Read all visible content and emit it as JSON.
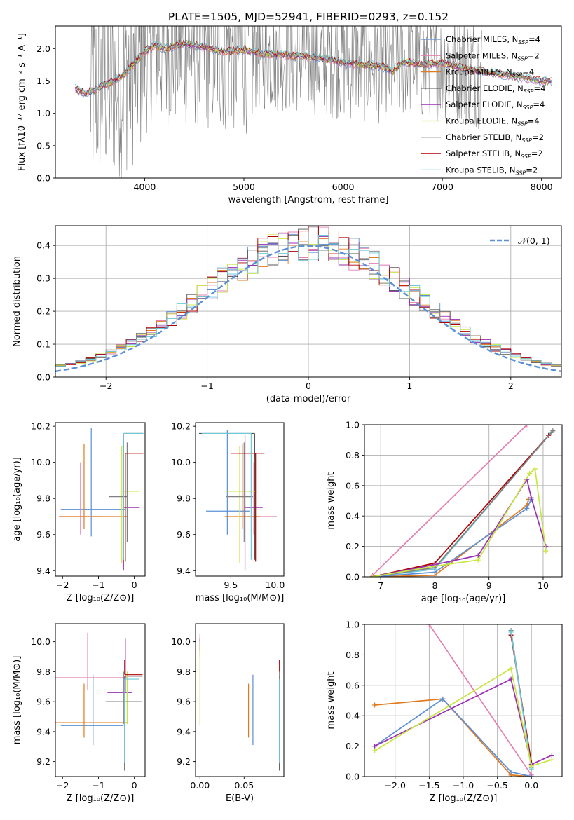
{
  "figure_title": "PLATE=1505, MJD=52941, FIBERID=0293, z=0.152",
  "colors": {
    "chabrier_miles": "#5b8fd6",
    "salpeter_miles": "#e57fb0",
    "kroupa_miles": "#e07a1f",
    "chabrier_elodie": "#555555",
    "salpeter_elodie": "#9a2fb3",
    "kroupa_elodie": "#c8e640",
    "chabrier_stelib": "#808080",
    "salpeter_stelib": "#b00000",
    "kroupa_stelib": "#6ccad8",
    "gauss": "#5b8fd6",
    "grid": "#b0b0b0"
  },
  "chart_data": [
    {
      "id": "spectrum",
      "type": "line",
      "ylabel": "Flux [fλ10⁻¹⁷ erg cm⁻² s⁻¹ A⁻¹]",
      "xlabel": "wavelength [Angstrom, rest frame]",
      "xlim": [
        3100,
        8200
      ],
      "ylim": [
        0,
        2.35
      ],
      "xticks": [
        4000,
        5000,
        6000,
        7000,
        8000
      ],
      "yticks": [
        0.0,
        0.5,
        1.0,
        1.5,
        2.0
      ],
      "grid": false,
      "legend_position": "top-right",
      "legend": [
        {
          "label": "Chabrier MILES, N_SSP=4",
          "color": "#5b8fd6"
        },
        {
          "label": "Salpeter MILES, N_SSP=2",
          "color": "#e57fb0"
        },
        {
          "label": "Kroupa MILES, N_SSP=4",
          "color": "#e07a1f"
        },
        {
          "label": "Chabrier ELODIE, N_SSP=4",
          "color": "#555555"
        },
        {
          "label": "Salpeter ELODIE, N_SSP=4",
          "color": "#9a2fb3"
        },
        {
          "label": "Kroupa ELODIE, N_SSP=4",
          "color": "#c8e640"
        },
        {
          "label": "Chabrier STELIB, N_SSP=2",
          "color": "#808080"
        },
        {
          "label": "Salpeter STELIB, N_SSP=2",
          "color": "#b00000"
        },
        {
          "label": "Kroupa STELIB, N_SSP=2",
          "color": "#6ccad8"
        }
      ],
      "model_continuum": {
        "x": [
          3300,
          3400,
          3500,
          3600,
          3700,
          3800,
          3900,
          4000,
          4100,
          4200,
          4400,
          4600,
          4800,
          5000,
          5200,
          5400,
          5600,
          5800,
          6000,
          6200,
          6400,
          6500,
          6600,
          6800,
          7000,
          7200,
          7400,
          7600,
          7800,
          8000,
          8100
        ],
        "y": [
          1.38,
          1.3,
          1.36,
          1.45,
          1.5,
          1.62,
          1.78,
          1.95,
          2.05,
          2.0,
          2.08,
          2.02,
          1.95,
          1.98,
          1.92,
          1.9,
          1.88,
          1.85,
          1.78,
          1.75,
          1.72,
          1.65,
          1.8,
          1.75,
          1.78,
          1.7,
          1.65,
          1.6,
          1.55,
          1.5,
          1.5
        ]
      },
      "data_spectrum_note_range": [
        3450,
        7400
      ]
    },
    {
      "id": "residuals",
      "type": "line",
      "ylabel": "Normed distribution",
      "xlabel": "(data-model)/error",
      "xlim": [
        -2.5,
        2.5
      ],
      "ylim": [
        0,
        0.46
      ],
      "xticks": [
        -2,
        -1,
        0,
        1,
        2
      ],
      "yticks": [
        0.0,
        0.1,
        0.2,
        0.3,
        0.4
      ],
      "grid": true,
      "legend_position": "top-right",
      "legend": [
        {
          "label": "𝒩(0, 1)",
          "color": "#5b8fd6",
          "style": "dashed"
        }
      ],
      "gaussian": {
        "mu": 0,
        "sigma": 1
      },
      "hist_bin_width": 0.1
    },
    {
      "id": "age_vs_Z",
      "type": "scatter",
      "xlabel": "Z [log₁₀(Z/Z⊙)]",
      "ylabel": "age  [log₁₀(age/yr)]",
      "xlim": [
        -2.2,
        0.3
      ],
      "ylim": [
        9.37,
        10.22
      ],
      "xticks": [
        -2,
        -1,
        0
      ],
      "yticks": [
        9.4,
        9.6,
        9.8,
        10.0,
        10.2
      ],
      "grid": false,
      "points": [
        {
          "x": -1.2,
          "y": 9.74,
          "xerr": [
            0.85,
            0.95
          ],
          "yerr": [
            0.15,
            0.45
          ],
          "color": "#5b8fd6"
        },
        {
          "x": -1.5,
          "y": 9.7,
          "xerr": [
            0.6,
            0.6
          ],
          "yerr": [
            0.1,
            0.3
          ],
          "color": "#e57fb0"
        },
        {
          "x": -1.4,
          "y": 9.7,
          "xerr": [
            0.7,
            1.2
          ],
          "yerr": [
            0.07,
            0.4
          ],
          "color": "#e07a1f"
        },
        {
          "x": -0.3,
          "y": 10.16,
          "xerr": [
            0.0,
            0.55
          ],
          "yerr": [
            0.7,
            0.0
          ],
          "color": "#555555"
        },
        {
          "x": -0.3,
          "y": 9.75,
          "xerr": [
            0.0,
            0.45
          ],
          "yerr": [
            0.35,
            0.4
          ],
          "color": "#9a2fb3"
        },
        {
          "x": -0.35,
          "y": 9.84,
          "xerr": [
            0.0,
            0.5
          ],
          "yerr": [
            0.4,
            0.25
          ],
          "color": "#c8e640"
        },
        {
          "x": -0.2,
          "y": 9.81,
          "xerr": [
            0.5,
            0.0
          ],
          "yerr": [
            0.25,
            0.3
          ],
          "color": "#808080"
        },
        {
          "x": -0.25,
          "y": 10.05,
          "xerr": [
            0.0,
            0.5
          ],
          "yerr": [
            0.6,
            0.0
          ],
          "color": "#b00000"
        },
        {
          "x": -0.3,
          "y": 10.16,
          "xerr": [
            0.0,
            0.55
          ],
          "yerr": [
            0.7,
            0.0
          ],
          "color": "#6ccad8"
        }
      ]
    },
    {
      "id": "age_vs_mass",
      "type": "scatter",
      "xlabel": "mass [log₁₀(M/M⊙)]",
      "xlim": [
        9.1,
        10.1
      ],
      "ylim": [
        9.37,
        10.22
      ],
      "xticks": [
        9.5,
        10.0
      ],
      "yticks": [
        9.4,
        9.6,
        9.8,
        10.0,
        10.2
      ],
      "grid": false,
      "points": [
        {
          "x": 9.46,
          "y": 9.73,
          "xerr": [
            0.24,
            0.25
          ],
          "yerr": [
            0.13,
            0.45
          ],
          "color": "#5b8fd6"
        },
        {
          "x": 9.76,
          "y": 9.7,
          "xerr": [
            0.08,
            0.26
          ],
          "yerr": [
            0.1,
            0.3
          ],
          "color": "#e57fb0"
        },
        {
          "x": 9.63,
          "y": 9.7,
          "xerr": [
            0.2,
            0.2
          ],
          "yerr": [
            0.07,
            0.4
          ],
          "color": "#e07a1f"
        },
        {
          "x": 9.77,
          "y": 10.16,
          "xerr": [
            0.63,
            0.0
          ],
          "yerr": [
            0.7,
            0.0
          ],
          "color": "#555555"
        },
        {
          "x": 9.66,
          "y": 9.75,
          "xerr": [
            0.0,
            0.2
          ],
          "yerr": [
            0.35,
            0.4
          ],
          "color": "#9a2fb3"
        },
        {
          "x": 9.6,
          "y": 9.84,
          "xerr": [
            0.15,
            0.2
          ],
          "yerr": [
            0.4,
            0.25
          ],
          "color": "#c8e640"
        },
        {
          "x": 9.65,
          "y": 9.81,
          "xerr": [
            0.2,
            0.1
          ],
          "yerr": [
            0.25,
            0.3
          ],
          "color": "#808080"
        },
        {
          "x": 9.78,
          "y": 10.05,
          "xerr": [
            0.28,
            0.1
          ],
          "yerr": [
            0.6,
            0.0
          ],
          "color": "#b00000"
        },
        {
          "x": 9.73,
          "y": 10.16,
          "xerr": [
            0.56,
            0.0
          ],
          "yerr": [
            0.7,
            0.0
          ],
          "color": "#6ccad8"
        }
      ]
    },
    {
      "id": "mass_weight_vs_age",
      "type": "line",
      "xlabel": "age  [log₁₀(age/yr)]",
      "ylabel": "mass weight",
      "xlim": [
        6.7,
        10.35
      ],
      "ylim": [
        0,
        1.0
      ],
      "xticks": [
        7,
        8,
        9,
        10
      ],
      "yticks": [
        0.0,
        0.2,
        0.4,
        0.6,
        0.8,
        1.0
      ],
      "grid": true,
      "series": [
        {
          "color": "#e57fb0",
          "x": [
            6.85,
            9.7
          ],
          "y": [
            0.01,
            1.0
          ]
        },
        {
          "color": "#b00000",
          "x": [
            6.85,
            8.0,
            10.1
          ],
          "y": [
            0.0,
            0.09,
            0.93
          ]
        },
        {
          "color": "#6ccad8",
          "x": [
            6.85,
            8.0,
            10.15
          ],
          "y": [
            0.0,
            0.05,
            0.95
          ]
        },
        {
          "color": "#808080",
          "x": [
            6.85,
            8.0,
            10.18
          ],
          "y": [
            0.0,
            0.06,
            0.96
          ]
        },
        {
          "color": "#e07a1f",
          "x": [
            6.85,
            8.0,
            9.7,
            9.73
          ],
          "y": [
            0.0,
            0.01,
            0.47,
            0.51
          ]
        },
        {
          "color": "#5b8fd6",
          "x": [
            6.85,
            8.0,
            9.7,
            9.78
          ],
          "y": [
            0.0,
            0.03,
            0.45,
            0.51
          ]
        },
        {
          "color": "#9a2fb3",
          "x": [
            6.85,
            8.0,
            8.8,
            9.7,
            9.78,
            10.05
          ],
          "y": [
            0.0,
            0.08,
            0.14,
            0.64,
            0.52,
            0.2
          ]
        },
        {
          "color": "#c8e640",
          "x": [
            6.85,
            8.0,
            8.8,
            9.75,
            9.85,
            10.05
          ],
          "y": [
            0.0,
            0.07,
            0.11,
            0.68,
            0.71,
            0.17
          ]
        }
      ]
    },
    {
      "id": "mass_vs_Z",
      "type": "scatter",
      "xlabel": "Z [log₁₀(Z/Z⊙)]",
      "ylabel": "mass [log₁₀(M/M⊙)]",
      "xlim": [
        -2.2,
        0.3
      ],
      "ylim": [
        9.1,
        10.12
      ],
      "xticks": [
        -2,
        -1,
        0
      ],
      "yticks": [
        9.2,
        9.4,
        9.6,
        9.8,
        10.0
      ],
      "grid": false,
      "points": [
        {
          "x": -1.15,
          "y": 9.44,
          "xerr": [
            0.9,
            0.85
          ],
          "yerr": [
            0.13,
            0.34
          ],
          "color": "#5b8fd6"
        },
        {
          "x": -1.3,
          "y": 9.76,
          "xerr": [
            0.9,
            1.1
          ],
          "yerr": [
            0.08,
            0.3
          ],
          "color": "#e57fb0"
        },
        {
          "x": -1.4,
          "y": 9.46,
          "xerr": [
            0.8,
            1.2
          ],
          "yerr": [
            0.1,
            0.26
          ],
          "color": "#e07a1f"
        },
        {
          "x": -0.27,
          "y": 9.77,
          "xerr": [
            0.0,
            0.5
          ],
          "yerr": [
            0.63,
            0.0
          ],
          "color": "#555555"
        },
        {
          "x": -0.25,
          "y": 9.66,
          "xerr": [
            0.5,
            0.2
          ],
          "yerr": [
            0.0,
            0.36
          ],
          "color": "#9a2fb3"
        },
        {
          "x": -0.2,
          "y": 9.6,
          "xerr": [
            0.0,
            0.25
          ],
          "yerr": [
            0.15,
            0.2
          ],
          "color": "#c8e640"
        },
        {
          "x": -0.3,
          "y": 9.6,
          "xerr": [
            0.5,
            0.5
          ],
          "yerr": [
            0.15,
            0.2
          ],
          "color": "#808080"
        },
        {
          "x": -0.27,
          "y": 9.78,
          "xerr": [
            0.0,
            0.5
          ],
          "yerr": [
            0.0,
            0.1
          ],
          "color": "#b00000"
        },
        {
          "x": -0.27,
          "y": 9.75,
          "xerr": [
            0.0,
            0.4
          ],
          "yerr": [
            0.56,
            0.0
          ],
          "color": "#6ccad8"
        }
      ]
    },
    {
      "id": "mass_vs_ebv",
      "type": "scatter",
      "xlabel": "E(B-V)",
      "xlim": [
        -0.005,
        0.095
      ],
      "ylim": [
        9.1,
        10.12
      ],
      "xticks": [
        0.0,
        0.05
      ],
      "xtick_labels": [
        "0.00",
        "0.05"
      ],
      "yticks": [
        9.2,
        9.4,
        9.6,
        9.8,
        10.0
      ],
      "grid": false,
      "points": [
        {
          "x": 0.06,
          "y": 9.44,
          "yerr": [
            0.13,
            0.34
          ],
          "color": "#5b8fd6"
        },
        {
          "x": 0.0,
          "y": 9.95,
          "yerr": [
            0.05,
            0.1
          ],
          "color": "#e57fb0"
        },
        {
          "x": 0.055,
          "y": 9.46,
          "yerr": [
            0.1,
            0.26
          ],
          "color": "#e07a1f"
        },
        {
          "x": 0.09,
          "y": 9.77,
          "yerr": [
            0.63,
            0.0
          ],
          "color": "#555555"
        },
        {
          "x": 0.0,
          "y": 9.98,
          "yerr": [
            0.04,
            0.04
          ],
          "color": "#9a2fb3"
        },
        {
          "x": 0.0,
          "y": 9.7,
          "yerr": [
            0.26,
            0.3
          ],
          "color": "#c8e640"
        },
        {
          "x": 0.09,
          "y": 9.6,
          "yerr": [
            0.15,
            0.2
          ],
          "color": "#808080"
        },
        {
          "x": 0.09,
          "y": 9.8,
          "yerr": [
            0.0,
            0.08
          ],
          "color": "#b00000"
        },
        {
          "x": 0.09,
          "y": 9.75,
          "yerr": [
            0.56,
            0.0
          ],
          "color": "#6ccad8"
        }
      ]
    },
    {
      "id": "mass_weight_vs_Z",
      "type": "line",
      "xlabel": "Z [log₁₀(Z/Z⊙)]",
      "ylabel": "mass weight",
      "xlim": [
        -2.45,
        0.45
      ],
      "ylim": [
        0,
        1.0
      ],
      "xticks": [
        -2.0,
        -1.5,
        -1.0,
        -0.5,
        0.0
      ],
      "xtick_labels": [
        "−2.0",
        "−1.5",
        "−1.0",
        "−0.5",
        "0.0"
      ],
      "yticks": [
        0.0,
        0.2,
        0.4,
        0.6,
        0.8,
        1.0
      ],
      "grid": true,
      "series": [
        {
          "color": "#e57fb0",
          "x": [
            -1.5,
            0.0
          ],
          "y": [
            1.0,
            0.01
          ]
        },
        {
          "color": "#e07a1f",
          "x": [
            -2.3,
            -1.3,
            -0.3,
            0.0
          ],
          "y": [
            0.47,
            0.51,
            0.01,
            0.0
          ]
        },
        {
          "color": "#5b8fd6",
          "x": [
            -2.3,
            -1.3,
            -0.3,
            0.0
          ],
          "y": [
            0.2,
            0.51,
            0.03,
            0.0
          ]
        },
        {
          "color": "#808080",
          "x": [
            -0.3,
            0.0
          ],
          "y": [
            0.96,
            0.06
          ]
        },
        {
          "color": "#b00000",
          "x": [
            -0.3,
            0.0
          ],
          "y": [
            0.93,
            0.09
          ]
        },
        {
          "color": "#6ccad8",
          "x": [
            -0.3,
            0.0
          ],
          "y": [
            0.95,
            0.05
          ]
        },
        {
          "color": "#9a2fb3",
          "x": [
            -2.3,
            -0.3,
            0.0,
            0.3
          ],
          "y": [
            0.2,
            0.64,
            0.08,
            0.14
          ]
        },
        {
          "color": "#c8e640",
          "x": [
            -2.3,
            -0.3,
            0.0,
            0.3
          ],
          "y": [
            0.17,
            0.71,
            0.07,
            0.11
          ]
        }
      ]
    }
  ]
}
